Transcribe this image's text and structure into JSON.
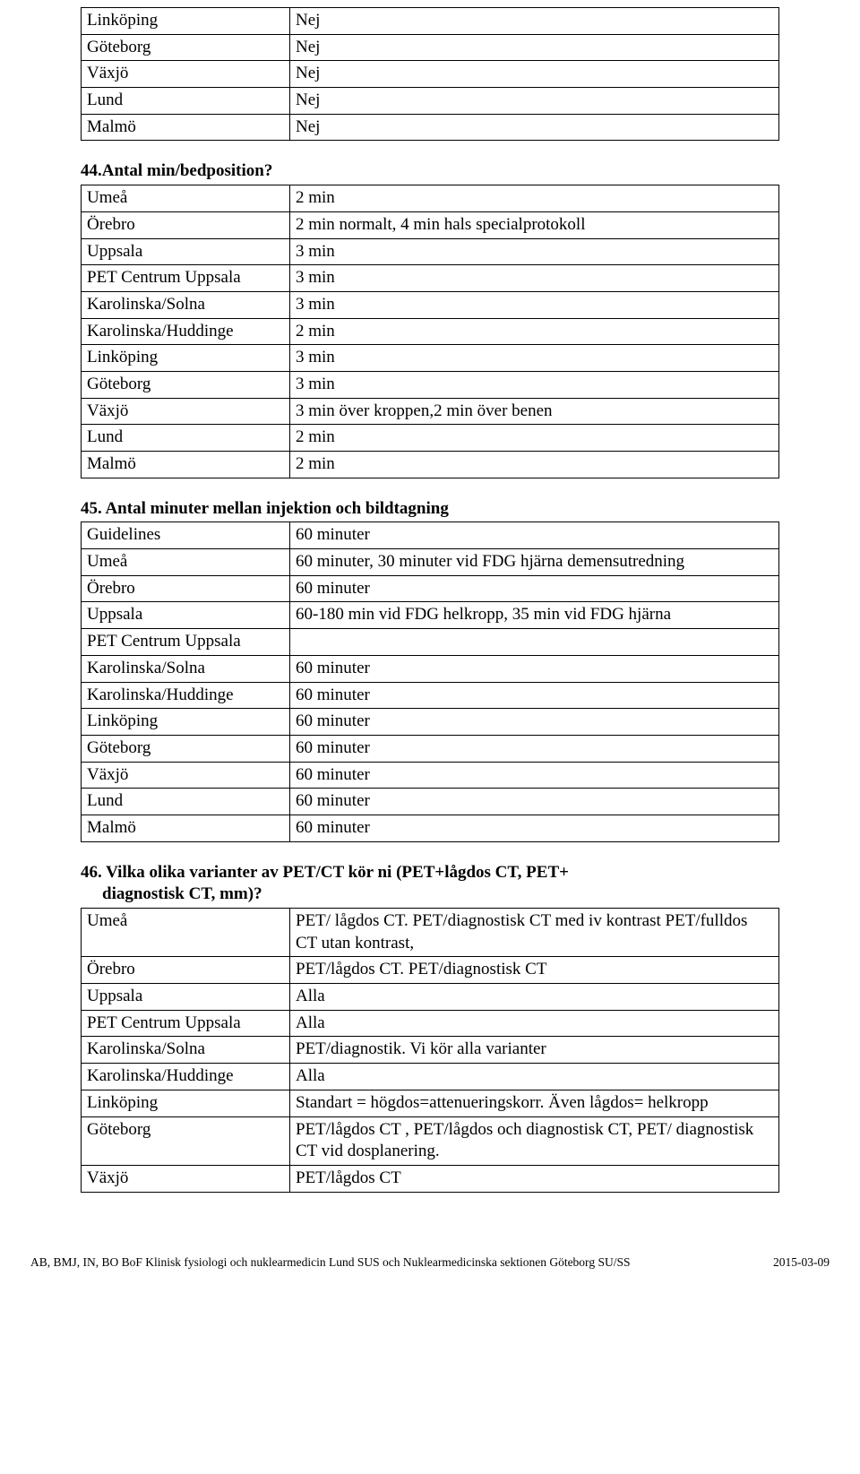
{
  "table1": {
    "rows": [
      [
        "Linköping",
        "Nej"
      ],
      [
        "Göteborg",
        "Nej"
      ],
      [
        "Växjö",
        "Nej"
      ],
      [
        "Lund",
        "Nej"
      ],
      [
        "Malmö",
        "Nej"
      ]
    ]
  },
  "heading44": "44.Antal min/bedposition?",
  "table44": {
    "rows": [
      [
        "Umeå",
        "2 min"
      ],
      [
        "Örebro",
        "2 min normalt, 4 min hals specialprotokoll"
      ],
      [
        "Uppsala",
        "3 min"
      ],
      [
        "PET Centrum Uppsala",
        "3 min"
      ],
      [
        "Karolinska/Solna",
        "3 min"
      ],
      [
        "Karolinska/Huddinge",
        "2 min"
      ],
      [
        "Linköping",
        "3 min"
      ],
      [
        "Göteborg",
        "3 min"
      ],
      [
        "Växjö",
        "3 min över kroppen,2 min över benen"
      ],
      [
        "Lund",
        "2 min"
      ],
      [
        "Malmö",
        "2 min"
      ]
    ]
  },
  "heading45": "45. Antal minuter mellan injektion och bildtagning",
  "table45": {
    "rows": [
      [
        "Guidelines",
        "60 minuter"
      ],
      [
        "Umeå",
        "60 minuter, 30 minuter vid FDG hjärna demensutredning"
      ],
      [
        "Örebro",
        "60 minuter"
      ],
      [
        "Uppsala",
        "60-180 min vid FDG helkropp, 35 min vid FDG hjärna"
      ],
      [
        "PET Centrum Uppsala",
        ""
      ],
      [
        "Karolinska/Solna",
        "60 minuter"
      ],
      [
        "Karolinska/Huddinge",
        "60 minuter"
      ],
      [
        "Linköping",
        "60 minuter"
      ],
      [
        "Göteborg",
        "60 minuter"
      ],
      [
        "Växjö",
        "60 minuter"
      ],
      [
        "Lund",
        "60 minuter"
      ],
      [
        "Malmö",
        "60 minuter"
      ]
    ]
  },
  "heading46_line1": "46. Vilka olika varianter av PET/CT kör ni (PET+lågdos CT, PET+",
  "heading46_line2": "diagnostisk CT, mm)?",
  "table46": {
    "rows": [
      [
        "Umeå",
        "PET/ lågdos CT. PET/diagnostisk CT med iv kontrast PET/fulldos CT utan kontrast,"
      ],
      [
        "Örebro",
        "PET/lågdos CT. PET/diagnostisk CT"
      ],
      [
        "Uppsala",
        "Alla"
      ],
      [
        "PET Centrum Uppsala",
        "Alla"
      ],
      [
        "Karolinska/Solna",
        "PET/diagnostik. Vi kör alla varianter"
      ],
      [
        "Karolinska/Huddinge",
        "Alla"
      ],
      [
        "Linköping",
        "Standart = högdos=attenueringskorr. Även lågdos= helkropp"
      ],
      [
        "Göteborg",
        "PET/lågdos CT , PET/lågdos och diagnostisk CT, PET/ diagnostisk CT vid dosplanering."
      ],
      [
        "Växjö",
        "PET/lågdos CT"
      ]
    ]
  },
  "footer_left": "AB, BMJ, IN, BO BoF Klinisk fysiologi och nuklearmedicin Lund SUS och Nuklearmedicinska sektionen  Göteborg SU/SS",
  "footer_right": "2015-03-09"
}
